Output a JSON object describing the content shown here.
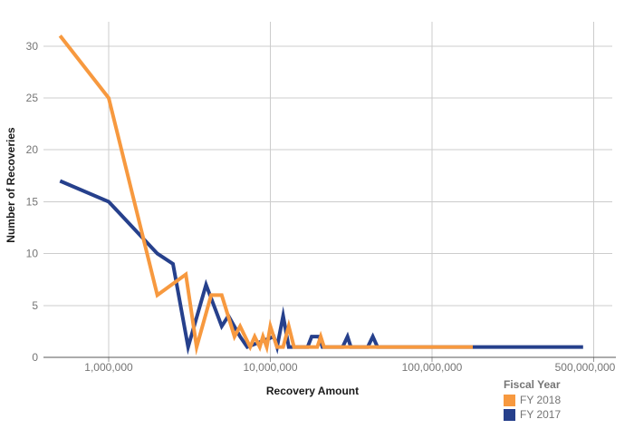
{
  "chart_data": {
    "type": "line",
    "title": "",
    "xlabel": "Recovery Amount",
    "ylabel": "Number of Recoveries",
    "x_scale": "log",
    "x_ticks": [
      {
        "value": 1000000,
        "label": "1,000,000"
      },
      {
        "value": 10000000,
        "label": "10,000,000"
      },
      {
        "value": 100000000,
        "label": "100,000,000"
      },
      {
        "value": 500000000,
        "label": "500,000,000"
      }
    ],
    "y_ticks": [
      0,
      5,
      10,
      15,
      20,
      25,
      30
    ],
    "ylim": [
      0,
      32
    ],
    "xlim": [
      500000,
      500000000
    ],
    "grid": true,
    "legend": {
      "title": "Fiscal Year",
      "position": "bottom-right"
    },
    "series": [
      {
        "name": "FY 2018",
        "color": "#F7993F",
        "points": [
          [
            500000,
            31
          ],
          [
            1000000,
            25
          ],
          [
            2000000,
            6
          ],
          [
            3000000,
            8
          ],
          [
            3500000,
            1
          ],
          [
            4300000,
            6
          ],
          [
            5000000,
            6
          ],
          [
            6000000,
            2
          ],
          [
            6500000,
            3
          ],
          [
            7500000,
            1
          ],
          [
            8000000,
            2
          ],
          [
            8600000,
            1
          ],
          [
            9000000,
            2
          ],
          [
            9500000,
            1
          ],
          [
            10000000,
            3
          ],
          [
            11000000,
            1
          ],
          [
            12000000,
            1
          ],
          [
            13000000,
            3
          ],
          [
            14000000,
            1
          ],
          [
            19500000,
            1
          ],
          [
            20500000,
            2
          ],
          [
            21500000,
            1
          ],
          [
            150000000,
            1
          ]
        ]
      },
      {
        "name": "FY 2017",
        "color": "#26408C",
        "points": [
          [
            500000,
            17
          ],
          [
            1000000,
            15
          ],
          [
            2000000,
            10
          ],
          [
            2500000,
            9
          ],
          [
            3100000,
            1
          ],
          [
            4000000,
            7
          ],
          [
            5000000,
            3
          ],
          [
            5500000,
            4
          ],
          [
            6500000,
            2
          ],
          [
            7200000,
            1
          ],
          [
            10500000,
            2
          ],
          [
            11000000,
            1
          ],
          [
            12000000,
            4
          ],
          [
            13000000,
            1
          ],
          [
            17000000,
            1
          ],
          [
            18000000,
            2
          ],
          [
            20000000,
            2
          ],
          [
            21000000,
            1
          ],
          [
            28000000,
            1
          ],
          [
            30000000,
            2
          ],
          [
            31500000,
            1
          ],
          [
            40000000,
            1
          ],
          [
            43000000,
            2
          ],
          [
            46000000,
            1
          ],
          [
            450000000,
            1
          ]
        ]
      }
    ]
  },
  "colors": {
    "background": "#ffffff",
    "gridline": "#cccccc",
    "axis_line": "#595959",
    "tick_label": "#757575",
    "axis_title": "#1a1a1a",
    "legend_text": "#757575",
    "fy2018": "#F7993F",
    "fy2017": "#26408C"
  }
}
